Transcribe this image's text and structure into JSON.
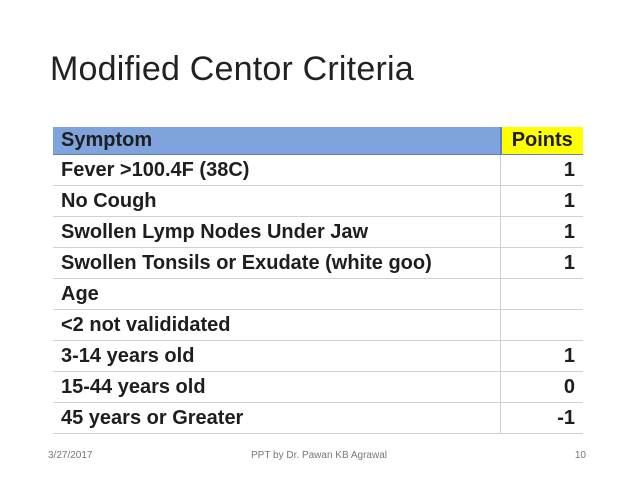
{
  "title": "Modified Centor Criteria",
  "table": {
    "header": [
      "Symptom",
      "Points"
    ],
    "rows": [
      [
        "Fever >100.4F (38C)",
        1
      ],
      [
        "No Cough",
        1
      ],
      [
        "Swollen Lymp Nodes Under Jaw",
        1
      ],
      [
        "Swollen Tonsils or Exudate (white goo)",
        1
      ],
      [
        "Age",
        null
      ],
      [
        "<2 not valididated",
        null
      ],
      [
        "3-14 years old",
        1
      ],
      [
        "15-44 years old",
        0
      ],
      [
        "45 years or Greater",
        -1
      ]
    ]
  },
  "footer": {
    "date": "3/27/2017",
    "author": "PPT by Dr. Pawan KB Agrawal",
    "page": 10
  }
}
